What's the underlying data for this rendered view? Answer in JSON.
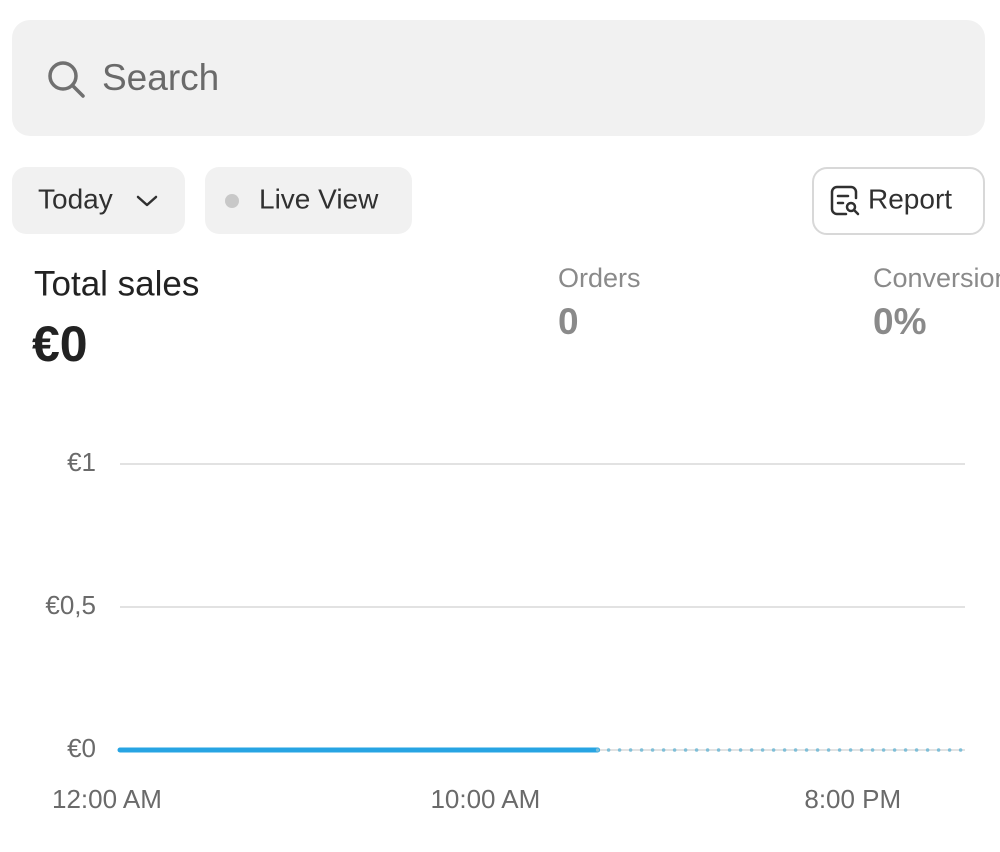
{
  "search": {
    "placeholder": "Search"
  },
  "filters": {
    "date": "Today",
    "live": "Live View",
    "report": "Report"
  },
  "metrics": [
    {
      "label": "Total sales",
      "value": "€0"
    },
    {
      "label": "Orders",
      "value": "0"
    },
    {
      "label": "Conversion",
      "value": "0%"
    }
  ],
  "chart_data": {
    "type": "line",
    "x": [
      0,
      1,
      2,
      3,
      4,
      5,
      6,
      7,
      8,
      9,
      10,
      11,
      12,
      13,
      14,
      15,
      16,
      17,
      18,
      19,
      20,
      21,
      22,
      23
    ],
    "series": [
      {
        "color": "#27a4e3",
        "style": "solid",
        "values": [
          0,
          0,
          0,
          0,
          0,
          0,
          0,
          0,
          0,
          0,
          0,
          0,
          0,
          0,
          null,
          null,
          null,
          null,
          null,
          null,
          null,
          null,
          null,
          null
        ]
      },
      {
        "color": "#7fbfd8",
        "style": "dotted",
        "values": [
          null,
          null,
          null,
          null,
          null,
          null,
          null,
          null,
          null,
          null,
          null,
          null,
          null,
          0,
          0,
          0,
          0,
          0,
          0,
          0,
          0,
          0,
          0,
          0
        ]
      }
    ],
    "xlim": [
      0,
      23
    ],
    "xticks": [
      {
        "value": 0,
        "label": "12:00 AM"
      },
      {
        "value": 10,
        "label": "10:00 AM"
      },
      {
        "value": 20,
        "label": "8:00 PM"
      }
    ],
    "ylim": [
      0,
      1
    ],
    "yticks": [
      {
        "value": 0,
        "label": "€0"
      },
      {
        "value": 0.5,
        "label": "€0,5"
      },
      {
        "value": 1,
        "label": "€1"
      }
    ],
    "grid": true
  }
}
